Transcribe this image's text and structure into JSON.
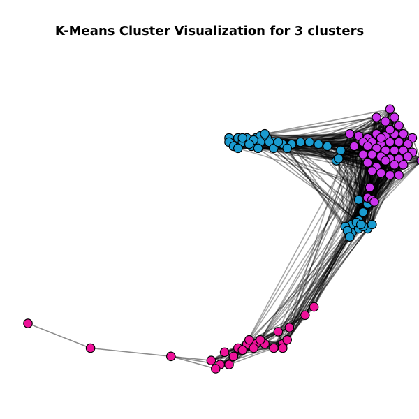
{
  "chart_data": {
    "type": "scatter",
    "title": "K-Means Cluster Visualization for 3 clusters",
    "xlabel": "",
    "ylabel": "",
    "axes_visible": false,
    "grid": false,
    "legend": "none",
    "edge_color": "#000000",
    "node_edge_color": "#000000",
    "series": [
      {
        "color": "#1a9bd0",
        "points": [
          [
            0.5,
            0.06
          ],
          [
            0.52,
            0.06
          ],
          [
            0.54,
            0.06
          ],
          [
            0.56,
            0.06
          ],
          [
            0.57,
            0.065
          ],
          [
            0.585,
            0.06
          ],
          [
            0.6,
            0.05
          ],
          [
            0.5,
            0.05
          ],
          [
            0.51,
            0.04
          ],
          [
            0.53,
            0.05
          ],
          [
            0.55,
            0.04
          ],
          [
            0.57,
            0.05
          ],
          [
            0.59,
            0.05
          ],
          [
            0.62,
            0.045
          ],
          [
            0.64,
            0.045
          ],
          [
            0.66,
            0.05
          ],
          [
            0.68,
            0.05
          ],
          [
            0.7,
            0.045
          ],
          [
            0.52,
            0.035
          ],
          [
            0.555,
            0.055
          ],
          [
            0.72,
            0.04
          ],
          [
            0.6,
            0.035
          ],
          [
            0.53,
            0.06
          ],
          [
            0.545,
            0.045
          ],
          [
            0.565,
            0.035
          ],
          [
            0.63,
            0.035
          ],
          [
            0.58,
            0.07
          ],
          [
            0.61,
            0.05
          ],
          [
            0.75,
            0.03
          ],
          [
            0.74,
            0.005
          ],
          [
            0.745,
            0.01
          ],
          [
            0.79,
            -0.09
          ],
          [
            0.81,
            -0.1
          ],
          [
            0.8,
            -0.12
          ],
          [
            0.79,
            -0.14
          ],
          [
            0.775,
            -0.15
          ],
          [
            0.76,
            -0.155
          ],
          [
            0.775,
            -0.17
          ],
          [
            0.79,
            -0.16
          ],
          [
            0.81,
            -0.16
          ],
          [
            0.82,
            -0.15
          ],
          [
            0.8,
            -0.155
          ],
          [
            0.765,
            -0.165
          ],
          [
            0.77,
            -0.18
          ],
          [
            0.785,
            -0.145
          ],
          [
            0.795,
            -0.15
          ]
        ]
      },
      {
        "color": "#cc33ee",
        "points": [
          [
            0.86,
            0.13
          ],
          [
            0.83,
            0.11
          ],
          [
            0.85,
            0.1
          ],
          [
            0.87,
            0.11
          ],
          [
            0.77,
            0.07
          ],
          [
            0.79,
            0.065
          ],
          [
            0.81,
            0.06
          ],
          [
            0.83,
            0.07
          ],
          [
            0.85,
            0.065
          ],
          [
            0.87,
            0.07
          ],
          [
            0.89,
            0.07
          ],
          [
            0.91,
            0.06
          ],
          [
            0.8,
            0.05
          ],
          [
            0.82,
            0.05
          ],
          [
            0.84,
            0.045
          ],
          [
            0.86,
            0.05
          ],
          [
            0.88,
            0.05
          ],
          [
            0.9,
            0.045
          ],
          [
            0.78,
            0.04
          ],
          [
            0.81,
            0.04
          ],
          [
            0.83,
            0.035
          ],
          [
            0.85,
            0.03
          ],
          [
            0.87,
            0.03
          ],
          [
            0.89,
            0.03
          ],
          [
            0.91,
            0.025
          ],
          [
            0.82,
            0.02
          ],
          [
            0.84,
            0.015
          ],
          [
            0.86,
            0.01
          ],
          [
            0.88,
            0.01
          ],
          [
            0.9,
            0.015
          ],
          [
            0.93,
            0.005
          ],
          [
            0.85,
            0.005
          ],
          [
            0.87,
            -0.005
          ],
          [
            0.89,
            -0.005
          ],
          [
            0.83,
            -0.01
          ],
          [
            0.82,
            -0.02
          ],
          [
            0.84,
            -0.025
          ],
          [
            0.86,
            -0.03
          ],
          [
            0.88,
            -0.03
          ],
          [
            0.81,
            0.0
          ],
          [
            0.8,
            0.02
          ],
          [
            0.84,
            0.06
          ],
          [
            0.86,
            0.08
          ],
          [
            0.88,
            0.09
          ],
          [
            0.815,
            -0.06
          ],
          [
            0.81,
            -0.085
          ],
          [
            0.82,
            -0.09
          ],
          [
            0.825,
            -0.095
          ]
        ]
      },
      {
        "color": "#ee1199",
        "points": [
          [
            0.05,
            -0.39
          ],
          [
            0.19,
            -0.45
          ],
          [
            0.37,
            -0.47
          ],
          [
            0.46,
            -0.48
          ],
          [
            0.48,
            -0.49
          ],
          [
            0.47,
            -0.5
          ],
          [
            0.49,
            -0.46
          ],
          [
            0.51,
            -0.47
          ],
          [
            0.5,
            -0.49
          ],
          [
            0.52,
            -0.45
          ],
          [
            0.54,
            -0.44
          ],
          [
            0.56,
            -0.44
          ],
          [
            0.58,
            -0.44
          ],
          [
            0.6,
            -0.45
          ],
          [
            0.62,
            -0.44
          ],
          [
            0.63,
            -0.43
          ],
          [
            0.62,
            -0.45
          ],
          [
            0.61,
            -0.41
          ],
          [
            0.545,
            -0.43
          ],
          [
            0.53,
            -0.455
          ],
          [
            0.555,
            -0.45
          ],
          [
            0.57,
            -0.43
          ],
          [
            0.635,
            -0.4
          ],
          [
            0.67,
            -0.37
          ],
          [
            0.69,
            -0.35
          ]
        ]
      }
    ]
  }
}
